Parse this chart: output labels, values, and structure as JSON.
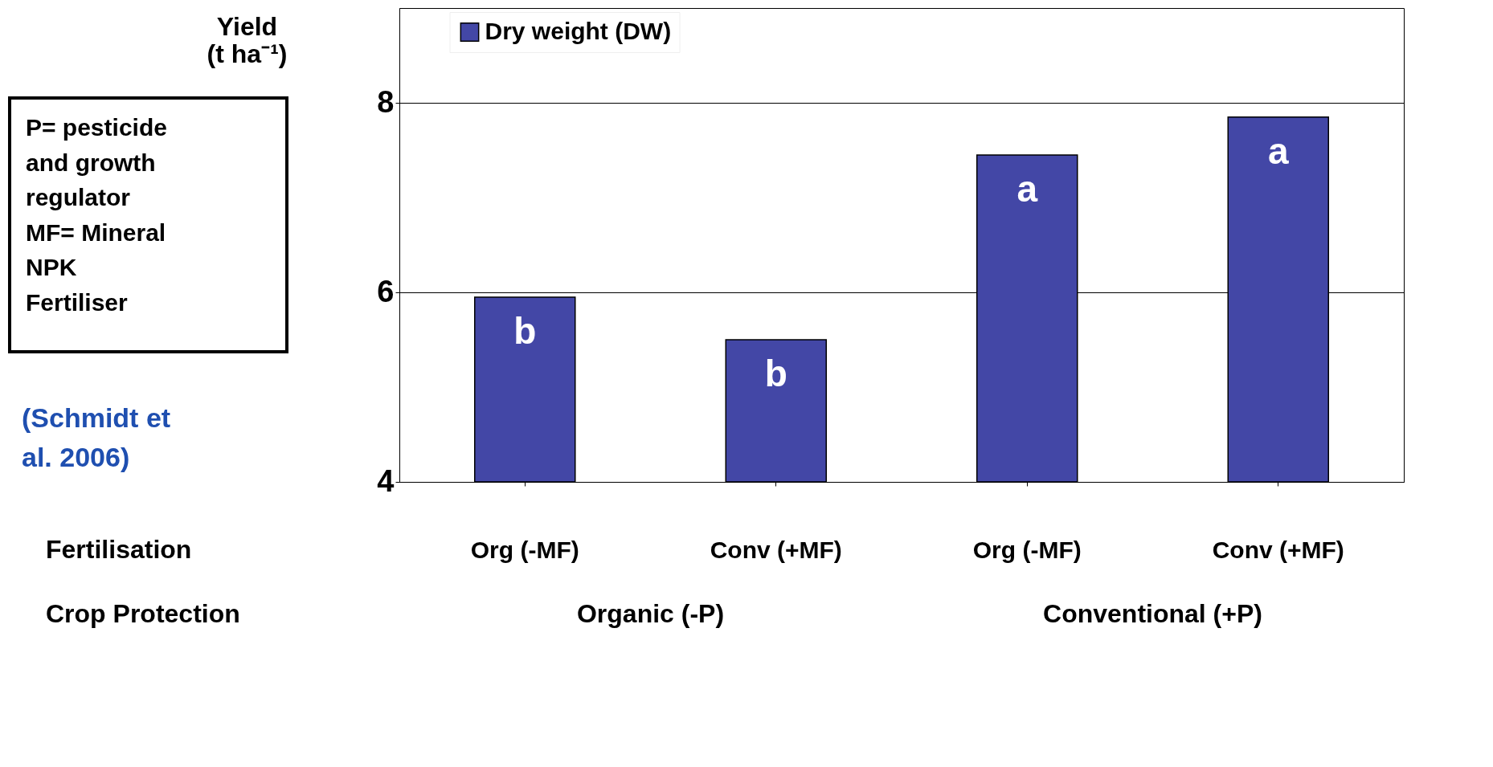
{
  "chart_data": {
    "type": "bar",
    "categories": [
      "Org (-MF)",
      "Conv (+MF)",
      "Org (-MF)",
      "Conv (+MF)"
    ],
    "series": [
      {
        "name": "Dry weight (DW)",
        "color": "#4347a6",
        "values": [
          5.95,
          5.5,
          7.45,
          7.85
        ]
      }
    ],
    "value_labels": [
      "b",
      "b",
      "a",
      "a"
    ],
    "ylabel": "Yield (t ha⁻¹)",
    "ylim": [
      4,
      9
    ],
    "yticks": [
      4,
      6,
      8
    ],
    "grid": "y",
    "legend": "top",
    "annotations": [
      "Fertilisation",
      "Crop Protection",
      "Organic (-P)",
      "Conventional (+P)",
      "P= pesticide\n    and growth\n    regulator\nMF= Mineral\n      NPK\n      Fertiliser",
      "(Schmidt et\nal. 2006)"
    ]
  }
}
